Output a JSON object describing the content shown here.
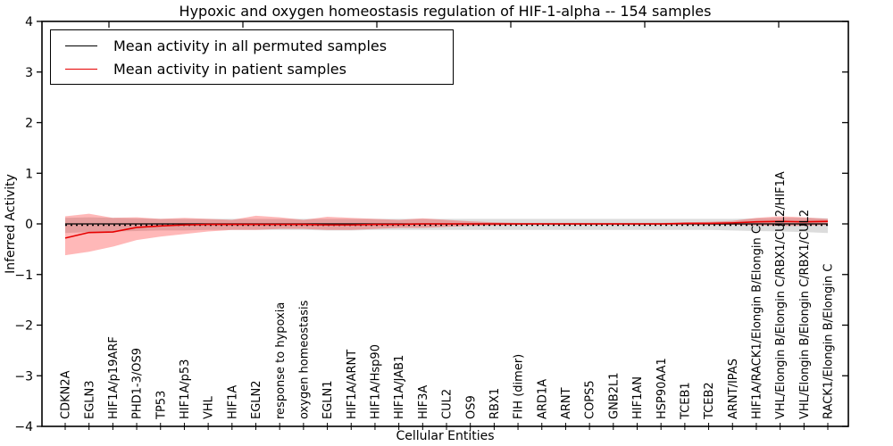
{
  "chart_data": {
    "type": "line",
    "title": "Hypoxic and oxygen homeostasis regulation of HIF-1-alpha -- 154 samples",
    "xlabel": "Cellular Entities",
    "ylabel": "Inferred Activity",
    "ylim": [
      -4,
      4
    ],
    "ytick_labels": [
      "4",
      "3",
      "2",
      "1",
      "0",
      "−1",
      "−2",
      "−3",
      "−4"
    ],
    "ytick_values": [
      4,
      3,
      2,
      1,
      0,
      -1,
      -2,
      -3,
      -4
    ],
    "grid": false,
    "legend_position": "upper-left",
    "categories": [
      "CDKN2A",
      "EGLN3",
      "HIF1A/p19ARF",
      "PHD1-3/OS9",
      "TP53",
      "HIF1A/p53",
      "VHL",
      "HIF1A",
      "EGLN2",
      "response to hypoxia",
      "oxygen homeostasis",
      "EGLN1",
      "HIF1A/ARNT",
      "HIF1A/Hsp90",
      "HIF1A/JAB1",
      "HIF3A",
      "CUL2",
      "OS9",
      "RBX1",
      "FIH (dimer)",
      "ARD1A",
      "ARNT",
      "COPS5",
      "GNB2L1",
      "HIF1AN",
      "HSP90AA1",
      "TCEB1",
      "TCEB2",
      "ARNT/IPAS",
      "HIF1A/RACK1/Elongin B/Elongin C",
      "VHL/Elongin B/Elongin C/RBX1/CUL2/HIF1A",
      "VHL/Elongin B/Elongin C/RBX1/CUL2",
      "RACK1/Elongin B/Elongin C"
    ],
    "series": [
      {
        "name": "Mean activity in all permuted samples",
        "color": "#000000",
        "values": [
          0,
          0,
          0,
          0,
          0,
          0,
          0,
          0,
          0,
          0,
          0,
          0,
          0,
          0,
          0,
          0,
          0,
          0,
          0,
          0,
          0,
          0,
          0,
          0,
          0,
          0,
          0,
          0,
          0,
          0,
          0,
          0,
          0
        ],
        "band_upper": [
          0.12,
          0.13,
          0.12,
          0.11,
          0.1,
          0.1,
          0.1,
          0.1,
          0.1,
          0.1,
          0.1,
          0.1,
          0.1,
          0.1,
          0.1,
          0.1,
          0.1,
          0.1,
          0.1,
          0.1,
          0.1,
          0.1,
          0.1,
          0.1,
          0.1,
          0.1,
          0.1,
          0.1,
          0.1,
          0.11,
          0.12,
          0.12,
          0.11
        ],
        "band_lower": [
          -0.18,
          -0.16,
          -0.15,
          -0.14,
          -0.13,
          -0.13,
          -0.12,
          -0.12,
          -0.12,
          -0.12,
          -0.12,
          -0.13,
          -0.13,
          -0.12,
          -0.12,
          -0.12,
          -0.12,
          -0.12,
          -0.12,
          -0.12,
          -0.12,
          -0.12,
          -0.12,
          -0.12,
          -0.12,
          -0.12,
          -0.12,
          -0.12,
          -0.13,
          -0.14,
          -0.15,
          -0.16,
          -0.18
        ],
        "band_color": "rgba(130,130,130,0.28)"
      },
      {
        "name": "Mean activity in patient samples",
        "color": "#e60000",
        "values": [
          -0.28,
          -0.17,
          -0.16,
          -0.07,
          -0.04,
          -0.02,
          -0.01,
          -0.01,
          -0.01,
          -0.01,
          -0.01,
          -0.02,
          -0.02,
          -0.01,
          -0.01,
          0,
          0,
          0,
          0,
          0,
          0,
          0,
          0,
          0,
          0,
          0,
          0.01,
          0.01,
          0.02,
          0.04,
          0.05,
          0.04,
          0.05
        ],
        "band_upper": [
          0.15,
          0.2,
          0.12,
          0.13,
          0.1,
          0.12,
          0.1,
          0.08,
          0.16,
          0.13,
          0.08,
          0.14,
          0.12,
          0.1,
          0.08,
          0.11,
          0.08,
          0.05,
          0.03,
          0.02,
          0.02,
          0.02,
          0.02,
          0.02,
          0.02,
          0.02,
          0.03,
          0.04,
          0.06,
          0.12,
          0.15,
          0.13,
          0.1
        ],
        "band_lower": [
          -0.62,
          -0.55,
          -0.45,
          -0.32,
          -0.25,
          -0.2,
          -0.15,
          -0.12,
          -0.12,
          -0.1,
          -0.1,
          -0.12,
          -0.12,
          -0.1,
          -0.08,
          -0.08,
          -0.06,
          -0.04,
          -0.03,
          -0.02,
          -0.02,
          -0.02,
          -0.02,
          -0.02,
          -0.02,
          -0.02,
          -0.02,
          -0.02,
          -0.02,
          -0.03,
          -0.04,
          -0.04,
          -0.02
        ],
        "band_color": "rgba(255,0,0,0.28)"
      }
    ]
  },
  "legend": {
    "items": [
      {
        "label": "Mean activity in all permuted samples",
        "color": "#000000"
      },
      {
        "label": "Mean activity in patient samples",
        "color": "#e60000"
      }
    ]
  }
}
